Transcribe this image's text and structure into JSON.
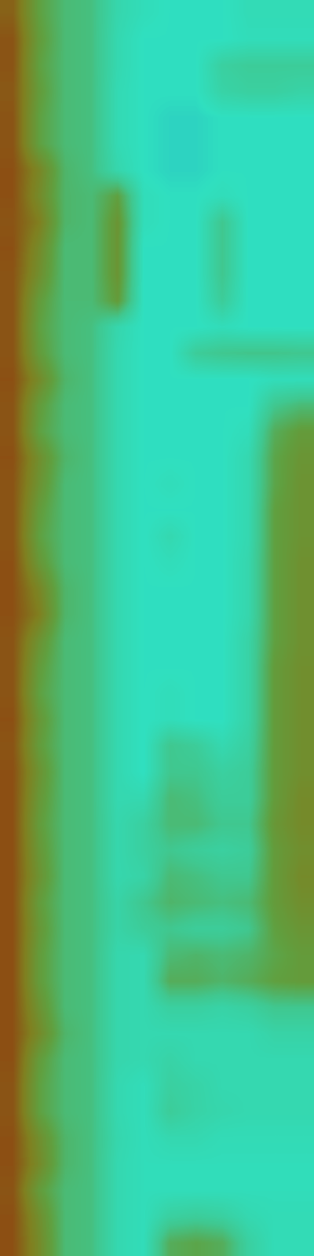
{
  "chart_data": {
    "type": "heatmap",
    "tick_labels": false,
    "color_range": [
      0,
      1
    ],
    "cells": [
      [
        0.82,
        0.6,
        0.5,
        0.48,
        0.36,
        0.32,
        0.3,
        0.3,
        0.3,
        0.33,
        0.33,
        0.33
      ],
      [
        0.85,
        0.62,
        0.5,
        0.48,
        0.35,
        0.3,
        0.3,
        0.3,
        0.3,
        0.32,
        0.32,
        0.32
      ],
      [
        0.85,
        0.6,
        0.5,
        0.48,
        0.35,
        0.3,
        0.3,
        0.3,
        0.4,
        0.42,
        0.42,
        0.42
      ],
      [
        0.84,
        0.62,
        0.5,
        0.48,
        0.34,
        0.3,
        0.3,
        0.3,
        0.38,
        0.4,
        0.4,
        0.38
      ],
      [
        0.85,
        0.6,
        0.5,
        0.48,
        0.34,
        0.3,
        0.28,
        0.28,
        0.3,
        0.3,
        0.3,
        0.3
      ],
      [
        0.85,
        0.6,
        0.5,
        0.48,
        0.34,
        0.3,
        0.28,
        0.28,
        0.3,
        0.3,
        0.3,
        0.3
      ],
      [
        0.86,
        0.72,
        0.52,
        0.48,
        0.36,
        0.3,
        0.28,
        0.28,
        0.3,
        0.3,
        0.3,
        0.3
      ],
      [
        0.86,
        0.7,
        0.52,
        0.5,
        0.6,
        0.32,
        0.3,
        0.3,
        0.32,
        0.3,
        0.3,
        0.3
      ],
      [
        0.85,
        0.75,
        0.52,
        0.5,
        0.65,
        0.32,
        0.3,
        0.3,
        0.45,
        0.3,
        0.3,
        0.3
      ],
      [
        0.86,
        0.7,
        0.5,
        0.5,
        0.65,
        0.3,
        0.3,
        0.3,
        0.45,
        0.3,
        0.3,
        0.3
      ],
      [
        0.85,
        0.68,
        0.5,
        0.5,
        0.65,
        0.3,
        0.3,
        0.3,
        0.45,
        0.3,
        0.3,
        0.3
      ],
      [
        0.85,
        0.62,
        0.5,
        0.5,
        0.62,
        0.3,
        0.3,
        0.3,
        0.42,
        0.3,
        0.3,
        0.3
      ],
      [
        0.85,
        0.6,
        0.5,
        0.48,
        0.36,
        0.3,
        0.3,
        0.3,
        0.32,
        0.3,
        0.3,
        0.3
      ],
      [
        0.85,
        0.62,
        0.5,
        0.48,
        0.35,
        0.3,
        0.3,
        0.42,
        0.45,
        0.46,
        0.46,
        0.45
      ],
      [
        0.86,
        0.7,
        0.52,
        0.48,
        0.35,
        0.3,
        0.3,
        0.3,
        0.3,
        0.3,
        0.32,
        0.32
      ],
      [
        0.85,
        0.62,
        0.5,
        0.48,
        0.35,
        0.3,
        0.3,
        0.3,
        0.3,
        0.3,
        0.45,
        0.5
      ],
      [
        0.85,
        0.6,
        0.5,
        0.48,
        0.35,
        0.3,
        0.3,
        0.3,
        0.3,
        0.32,
        0.55,
        0.62
      ],
      [
        0.86,
        0.68,
        0.52,
        0.48,
        0.35,
        0.3,
        0.3,
        0.3,
        0.3,
        0.35,
        0.58,
        0.65
      ],
      [
        0.85,
        0.66,
        0.5,
        0.48,
        0.35,
        0.3,
        0.32,
        0.3,
        0.3,
        0.35,
        0.58,
        0.66
      ],
      [
        0.85,
        0.62,
        0.5,
        0.48,
        0.35,
        0.3,
        0.3,
        0.3,
        0.3,
        0.35,
        0.6,
        0.66
      ],
      [
        0.85,
        0.6,
        0.5,
        0.48,
        0.35,
        0.3,
        0.35,
        0.3,
        0.3,
        0.35,
        0.6,
        0.66
      ],
      [
        0.86,
        0.64,
        0.5,
        0.48,
        0.35,
        0.3,
        0.32,
        0.3,
        0.3,
        0.36,
        0.6,
        0.67
      ],
      [
        0.86,
        0.72,
        0.52,
        0.48,
        0.35,
        0.3,
        0.3,
        0.3,
        0.3,
        0.36,
        0.6,
        0.67
      ],
      [
        0.86,
        0.75,
        0.52,
        0.48,
        0.35,
        0.3,
        0.3,
        0.3,
        0.3,
        0.36,
        0.6,
        0.67
      ],
      [
        0.85,
        0.66,
        0.5,
        0.48,
        0.35,
        0.3,
        0.3,
        0.3,
        0.3,
        0.38,
        0.6,
        0.67
      ],
      [
        0.85,
        0.62,
        0.5,
        0.48,
        0.35,
        0.3,
        0.3,
        0.3,
        0.3,
        0.38,
        0.62,
        0.68
      ],
      [
        0.85,
        0.6,
        0.5,
        0.48,
        0.35,
        0.3,
        0.32,
        0.3,
        0.3,
        0.38,
        0.62,
        0.68
      ],
      [
        0.86,
        0.64,
        0.5,
        0.48,
        0.35,
        0.3,
        0.32,
        0.3,
        0.3,
        0.38,
        0.62,
        0.68
      ],
      [
        0.85,
        0.62,
        0.5,
        0.48,
        0.35,
        0.3,
        0.45,
        0.42,
        0.35,
        0.4,
        0.62,
        0.68
      ],
      [
        0.86,
        0.66,
        0.5,
        0.48,
        0.35,
        0.3,
        0.45,
        0.45,
        0.4,
        0.42,
        0.62,
        0.68
      ],
      [
        0.86,
        0.64,
        0.5,
        0.48,
        0.35,
        0.35,
        0.5,
        0.48,
        0.42,
        0.42,
        0.62,
        0.7
      ],
      [
        0.86,
        0.62,
        0.5,
        0.48,
        0.36,
        0.4,
        0.5,
        0.5,
        0.45,
        0.45,
        0.64,
        0.7
      ],
      [
        0.86,
        0.64,
        0.5,
        0.48,
        0.36,
        0.4,
        0.45,
        0.42,
        0.4,
        0.42,
        0.62,
        0.68
      ],
      [
        0.86,
        0.66,
        0.5,
        0.48,
        0.36,
        0.38,
        0.5,
        0.48,
        0.45,
        0.45,
        0.62,
        0.7
      ],
      [
        0.86,
        0.62,
        0.5,
        0.48,
        0.38,
        0.45,
        0.52,
        0.5,
        0.48,
        0.5,
        0.62,
        0.68
      ],
      [
        0.86,
        0.64,
        0.5,
        0.48,
        0.38,
        0.42,
        0.45,
        0.42,
        0.42,
        0.45,
        0.6,
        0.65
      ],
      [
        0.86,
        0.62,
        0.5,
        0.48,
        0.36,
        0.35,
        0.5,
        0.52,
        0.5,
        0.52,
        0.58,
        0.62
      ],
      [
        0.86,
        0.62,
        0.5,
        0.48,
        0.36,
        0.35,
        0.55,
        0.55,
        0.52,
        0.55,
        0.6,
        0.62
      ],
      [
        0.86,
        0.66,
        0.5,
        0.48,
        0.36,
        0.35,
        0.4,
        0.4,
        0.38,
        0.4,
        0.45,
        0.45
      ],
      [
        0.86,
        0.7,
        0.52,
        0.48,
        0.36,
        0.35,
        0.35,
        0.35,
        0.35,
        0.35,
        0.38,
        0.38
      ],
      [
        0.86,
        0.62,
        0.5,
        0.48,
        0.36,
        0.35,
        0.38,
        0.35,
        0.35,
        0.35,
        0.35,
        0.35
      ],
      [
        0.85,
        0.6,
        0.5,
        0.48,
        0.35,
        0.32,
        0.4,
        0.38,
        0.35,
        0.35,
        0.35,
        0.35
      ],
      [
        0.85,
        0.6,
        0.5,
        0.48,
        0.35,
        0.32,
        0.42,
        0.38,
        0.36,
        0.35,
        0.35,
        0.35
      ],
      [
        0.86,
        0.68,
        0.52,
        0.48,
        0.36,
        0.32,
        0.35,
        0.35,
        0.33,
        0.33,
        0.33,
        0.33
      ],
      [
        0.86,
        0.7,
        0.52,
        0.48,
        0.35,
        0.32,
        0.32,
        0.32,
        0.32,
        0.32,
        0.32,
        0.32
      ],
      [
        0.85,
        0.62,
        0.5,
        0.48,
        0.35,
        0.32,
        0.32,
        0.32,
        0.32,
        0.32,
        0.32,
        0.32
      ],
      [
        0.86,
        0.68,
        0.5,
        0.48,
        0.35,
        0.32,
        0.4,
        0.42,
        0.4,
        0.35,
        0.33,
        0.33
      ],
      [
        0.86,
        0.7,
        0.5,
        0.48,
        0.35,
        0.32,
        0.55,
        0.58,
        0.55,
        0.4,
        0.33,
        0.33
      ]
    ]
  }
}
